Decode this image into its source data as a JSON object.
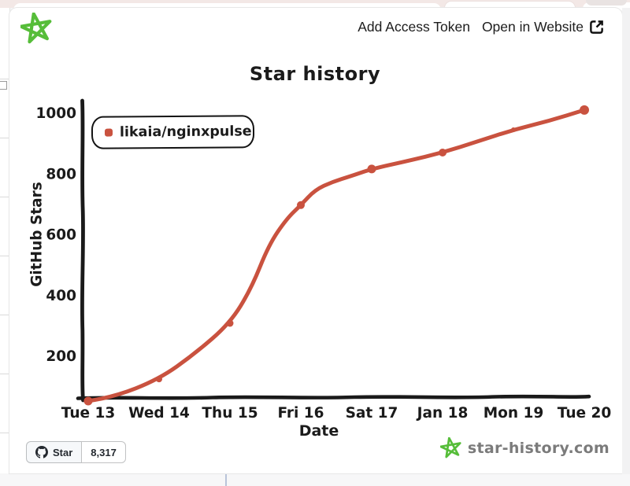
{
  "window": {
    "header": {
      "add_access_token_label": "Add Access Token",
      "open_in_website_label": "Open in Website"
    },
    "footer": {
      "star_button_label": "Star",
      "star_count": "8,317",
      "brand_text": "star-history.com"
    }
  },
  "icons": {
    "logo": "hand-drawn-star",
    "external_link": "open-in-new-window-arrow",
    "github": "octocat-mark",
    "brand_star": "hand-drawn-star"
  },
  "colors": {
    "series_red": "#c9523f",
    "brand_green": "#56bd39",
    "ink_black": "#1a1a1a",
    "brand_text_gray": "#7b7b7b"
  },
  "chart_data": {
    "type": "line",
    "title": "Star history",
    "xlabel": "Date",
    "ylabel": "GitHub Stars",
    "categories": [
      "Tue 13",
      "Wed 14",
      "Thu 15",
      "Fri 16",
      "Sat 17",
      "Jan 18",
      "Mon 19",
      "Tue 20"
    ],
    "yticks": [
      200,
      400,
      600,
      800,
      1000
    ],
    "ylim": [
      0,
      1040
    ],
    "grid": false,
    "legend_position": "top-left",
    "series": [
      {
        "name": "likaia/nginxpulse",
        "color": "#c9523f",
        "values": [
          50,
          122,
          306,
          695,
          814,
          868,
          943,
          1008
        ],
        "markers": [
          {
            "i": 0,
            "r": 5.5
          },
          {
            "i": 1,
            "r": 4
          },
          {
            "i": 2,
            "r": 4.5
          },
          {
            "i": 3,
            "r": 5
          },
          {
            "i": 4,
            "r": 5.5
          },
          {
            "i": 5,
            "r": 5
          },
          {
            "i": 6,
            "r": 3
          },
          {
            "i": 7,
            "r": 6
          }
        ],
        "curve_samples": [
          [
            0,
            50
          ],
          [
            0.35,
            62
          ],
          [
            1,
            122
          ],
          [
            1.5,
            205
          ],
          [
            2,
            306
          ],
          [
            2.3,
            420
          ],
          [
            2.55,
            565
          ],
          [
            2.8,
            650
          ],
          [
            3,
            695
          ],
          [
            3.2,
            745
          ],
          [
            3.45,
            772
          ],
          [
            3.7,
            790
          ],
          [
            4,
            814
          ],
          [
            4.5,
            840
          ],
          [
            5,
            868
          ],
          [
            5.5,
            905
          ],
          [
            6,
            943
          ],
          [
            6.5,
            972
          ],
          [
            7,
            1008
          ]
        ]
      }
    ]
  }
}
